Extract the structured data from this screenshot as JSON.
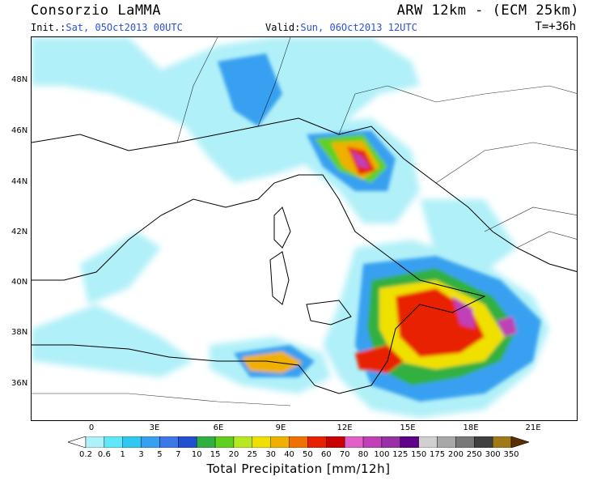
{
  "header": {
    "org": "Consorzio LaMMA",
    "model": "ARW 12km - (ECM 25km)",
    "init_label": "Init.:",
    "init_value": "Sat, 05Oct2013 00UTC",
    "valid_label": "Valid:",
    "valid_value": "Sun, 06Oct2013 12UTC",
    "step": "T=+36h"
  },
  "map": {
    "lat_labels": [
      "48N",
      "46N",
      "44N",
      "42N",
      "40N",
      "38N",
      "36N"
    ],
    "lon_labels": [
      "0",
      "3E",
      "6E",
      "9E",
      "12E",
      "15E",
      "18E",
      "21E"
    ]
  },
  "legend": {
    "title": "Total Precipitation [mm/12h]",
    "ticks": [
      "0.2",
      "0.6",
      "1",
      "3",
      "5",
      "7",
      "10",
      "15",
      "20",
      "25",
      "30",
      "40",
      "50",
      "60",
      "70",
      "80",
      "100",
      "125",
      "150",
      "175",
      "200",
      "250",
      "300",
      "350"
    ],
    "colors": [
      "#b0f0f8",
      "#60e8f8",
      "#30c8f0",
      "#38a0f0",
      "#3c78e8",
      "#2050d0",
      "#30b040",
      "#60d020",
      "#b8e820",
      "#f0e000",
      "#f0b000",
      "#f07000",
      "#e82000",
      "#c80000",
      "#e060c8",
      "#c040b8",
      "#9830a8",
      "#600088",
      "#d0d0d0",
      "#a8a8a8",
      "#787878",
      "#404040",
      "#a07818",
      "#805010",
      "#5a3000"
    ]
  }
}
